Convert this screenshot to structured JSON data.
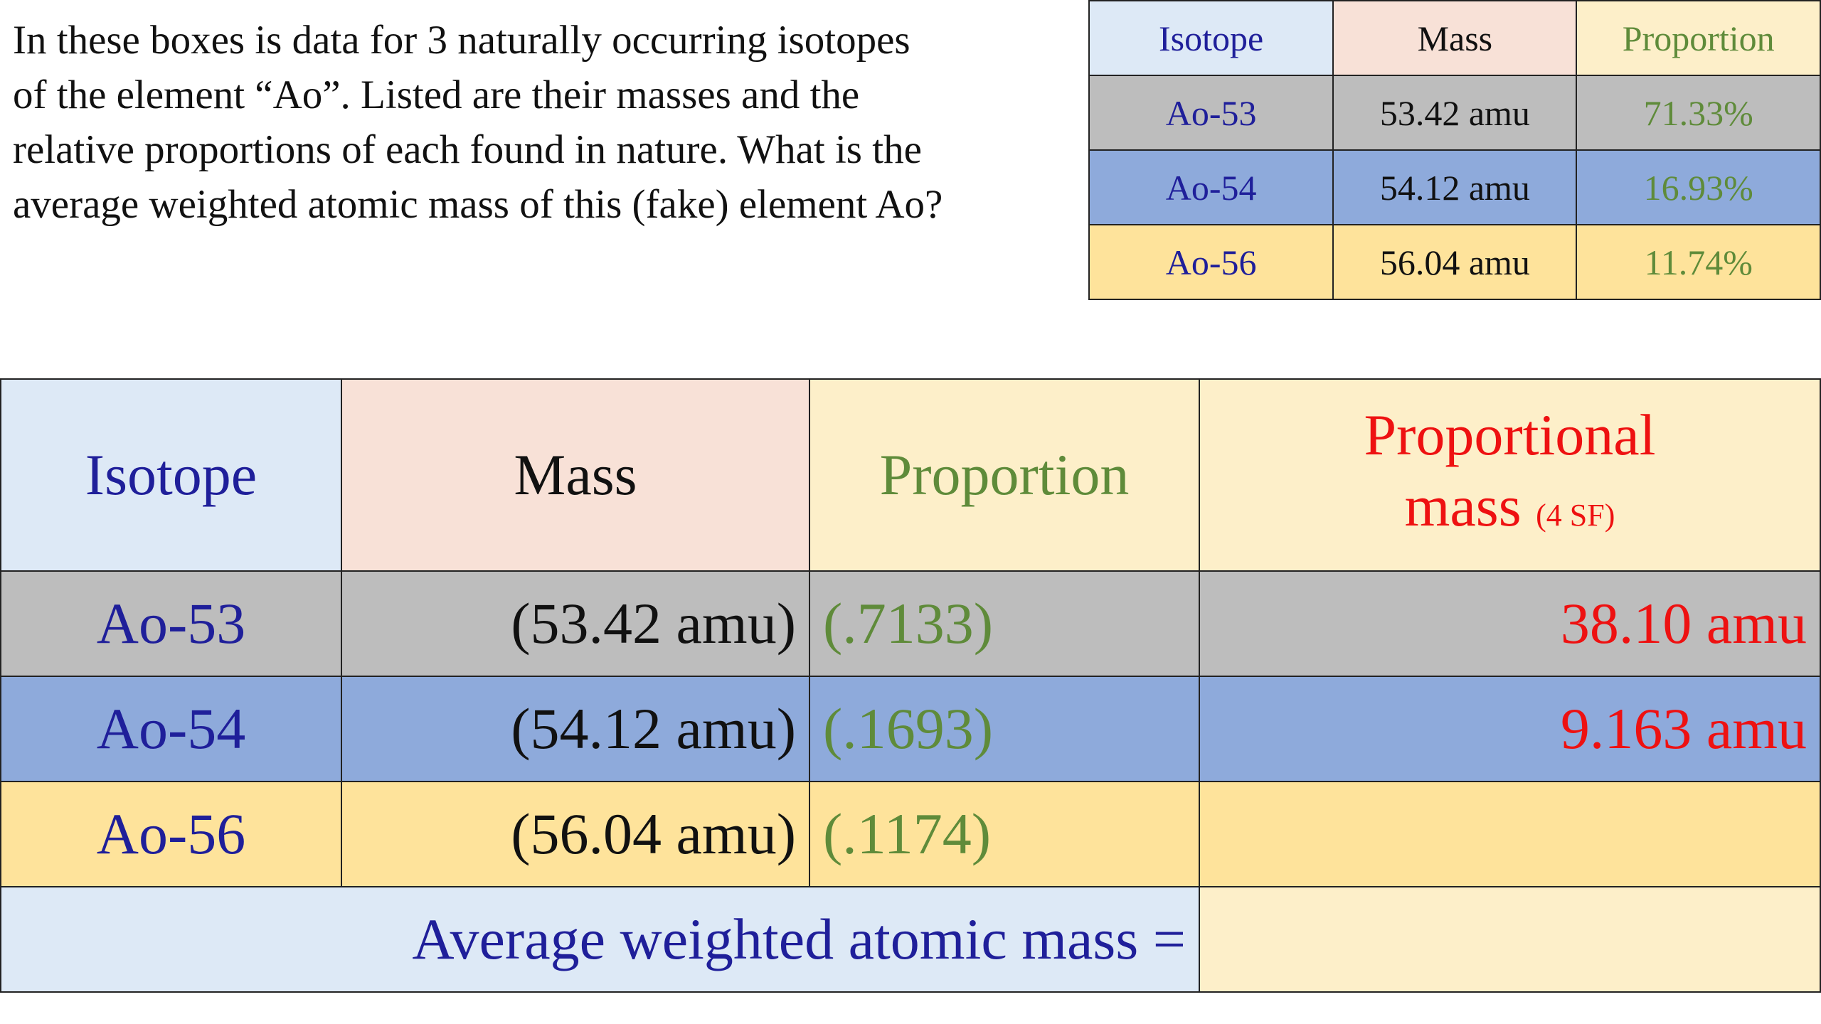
{
  "prompt": "In these boxes is data for 3 naturally occurring isotopes\nof the element “Ao”.  Listed are their masses and the\nrelative proportions of each found in nature.  What is the\naverage weighted atomic mass of this (fake) element Ao?",
  "data_table": {
    "headers": [
      "Isotope",
      "Mass",
      "Proportion"
    ],
    "rows": [
      {
        "isotope": "Ao-53",
        "mass": "53.42 amu",
        "proportion": "71.33%"
      },
      {
        "isotope": "Ao-54",
        "mass": "54.12 amu",
        "proportion": "16.93%"
      },
      {
        "isotope": "Ao-56",
        "mass": "56.04 amu",
        "proportion": "11.74%"
      }
    ]
  },
  "work_table": {
    "headers": {
      "isotope": "Isotope",
      "mass": "Mass",
      "proportion": "Proportion",
      "proportional_mass_line1": "Proportional",
      "proportional_mass_line2": "mass",
      "proportional_mass_note": "(4 SF)"
    },
    "rows": [
      {
        "isotope": "Ao-53",
        "mass": "(53.42 amu)",
        "proportion": "(.7133)",
        "proportional_mass": "38.10 amu"
      },
      {
        "isotope": "Ao-54",
        "mass": "(54.12 amu)",
        "proportion": "(.1693)",
        "proportional_mass": "9.163 amu"
      },
      {
        "isotope": "Ao-56",
        "mass": "(56.04 amu)",
        "proportion": "(.1174)",
        "proportional_mass": ""
      }
    ],
    "average_label": "Average weighted atomic mass =",
    "average_value": ""
  },
  "colors": {
    "isotope_text": "#1f1f9a",
    "proportion_text": "#5f8b3a",
    "proportional_mass_text": "#ee1111",
    "row_ao53": "#bdbdbd",
    "row_ao54": "#8eaadb",
    "row_ao56": "#fee39b"
  }
}
